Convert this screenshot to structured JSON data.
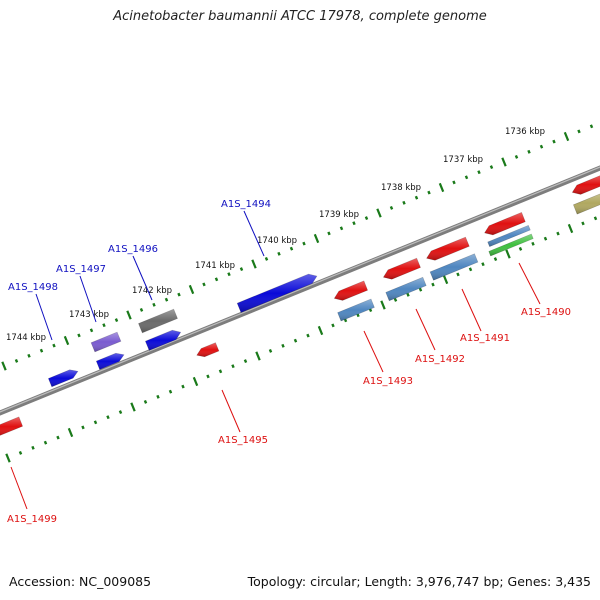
{
  "title": "Acinetobacter baumannii ATCC 17978, complete genome",
  "footer": {
    "accession": "Accession: NC_009085",
    "summary": "Topology: circular; Length: 3,976,747 bp; Genes: 3,435"
  },
  "colors": {
    "backbone": "#7d7d7d",
    "ticks": "#1a7a1a",
    "forward_label": "#1010c0",
    "reverse_label": "#dd1010"
  },
  "kbp_labels": [
    "1744 kbp",
    "1743 kbp",
    "1742 kbp",
    "1741 kbp",
    "1740 kbp",
    "1739 kbp",
    "1738 kbp",
    "1737 kbp",
    "1736 kbp"
  ],
  "gene_labels": {
    "forward": [
      "A1S_1498",
      "A1S_1497",
      "A1S_1496",
      "A1S_1494"
    ],
    "reverse": [
      "A1S_1499",
      "A1S_1495",
      "A1S_1493",
      "A1S_1492",
      "A1S_1491",
      "A1S_1490"
    ]
  },
  "genes": [
    {
      "id": "f1",
      "color": "#0a0ad8"
    },
    {
      "id": "f2",
      "color": "#0a0ad8"
    },
    {
      "id": "f3",
      "color": "#7a5cd0"
    },
    {
      "id": "f4",
      "color": "#0a0ad8"
    },
    {
      "id": "f5",
      "color": "#6a6a6a"
    },
    {
      "id": "f6",
      "color": "#0a0ad8"
    },
    {
      "id": "r1",
      "color": "#e01010"
    },
    {
      "id": "r2",
      "color": "#e01010"
    },
    {
      "id": "r3",
      "color": "#e01010"
    },
    {
      "id": "r4",
      "color": "#4f86c0"
    },
    {
      "id": "r5",
      "color": "#e01010"
    },
    {
      "id": "r6",
      "color": "#4f86c0"
    },
    {
      "id": "r7",
      "color": "#e01010"
    },
    {
      "id": "r8",
      "color": "#4f86c0"
    },
    {
      "id": "r9",
      "color": "#e01010"
    },
    {
      "id": "r10",
      "color": "#4f86c0"
    },
    {
      "id": "r11",
      "color": "#3fbf3f"
    },
    {
      "id": "r12",
      "color": "#e01010"
    },
    {
      "id": "r13",
      "color": "#b0a860"
    }
  ]
}
